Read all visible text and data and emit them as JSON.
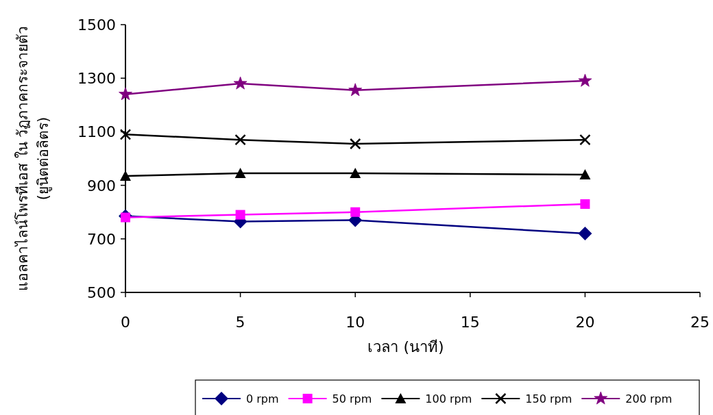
{
  "chart_data": {
    "type": "line",
    "xlabel": "เวลา (นาที)",
    "ylabel": "แอลคาไลน์โพรทีเอส ใน วัฏภาคกระจายตัว (ยูนิตต่อลิตร)",
    "x": [
      0,
      5,
      10,
      20
    ],
    "series": [
      {
        "name": "0 rpm",
        "color": "#000080",
        "marker": "diamond",
        "values": [
          785,
          765,
          770,
          720
        ]
      },
      {
        "name": "50 rpm",
        "color": "#ff00ff",
        "marker": "square",
        "values": [
          780,
          790,
          800,
          830
        ]
      },
      {
        "name": "100 rpm",
        "color": "#000000",
        "marker": "triangle",
        "values": [
          935,
          945,
          945,
          940
        ]
      },
      {
        "name": "150 rpm",
        "color": "#000000",
        "marker": "cross",
        "values": [
          1090,
          1070,
          1055,
          1070
        ]
      },
      {
        "name": "200 rpm",
        "color": "#800080",
        "marker": "star",
        "values": [
          1240,
          1280,
          1255,
          1290
        ]
      }
    ],
    "xlim": [
      0,
      25
    ],
    "xticks": [
      0,
      5,
      10,
      15,
      20,
      25
    ],
    "ylim": [
      500,
      1500
    ],
    "yticks": [
      500,
      700,
      900,
      1100,
      1300,
      1500
    ],
    "grid": false,
    "legend": "bottom",
    "line_style": "solid"
  }
}
